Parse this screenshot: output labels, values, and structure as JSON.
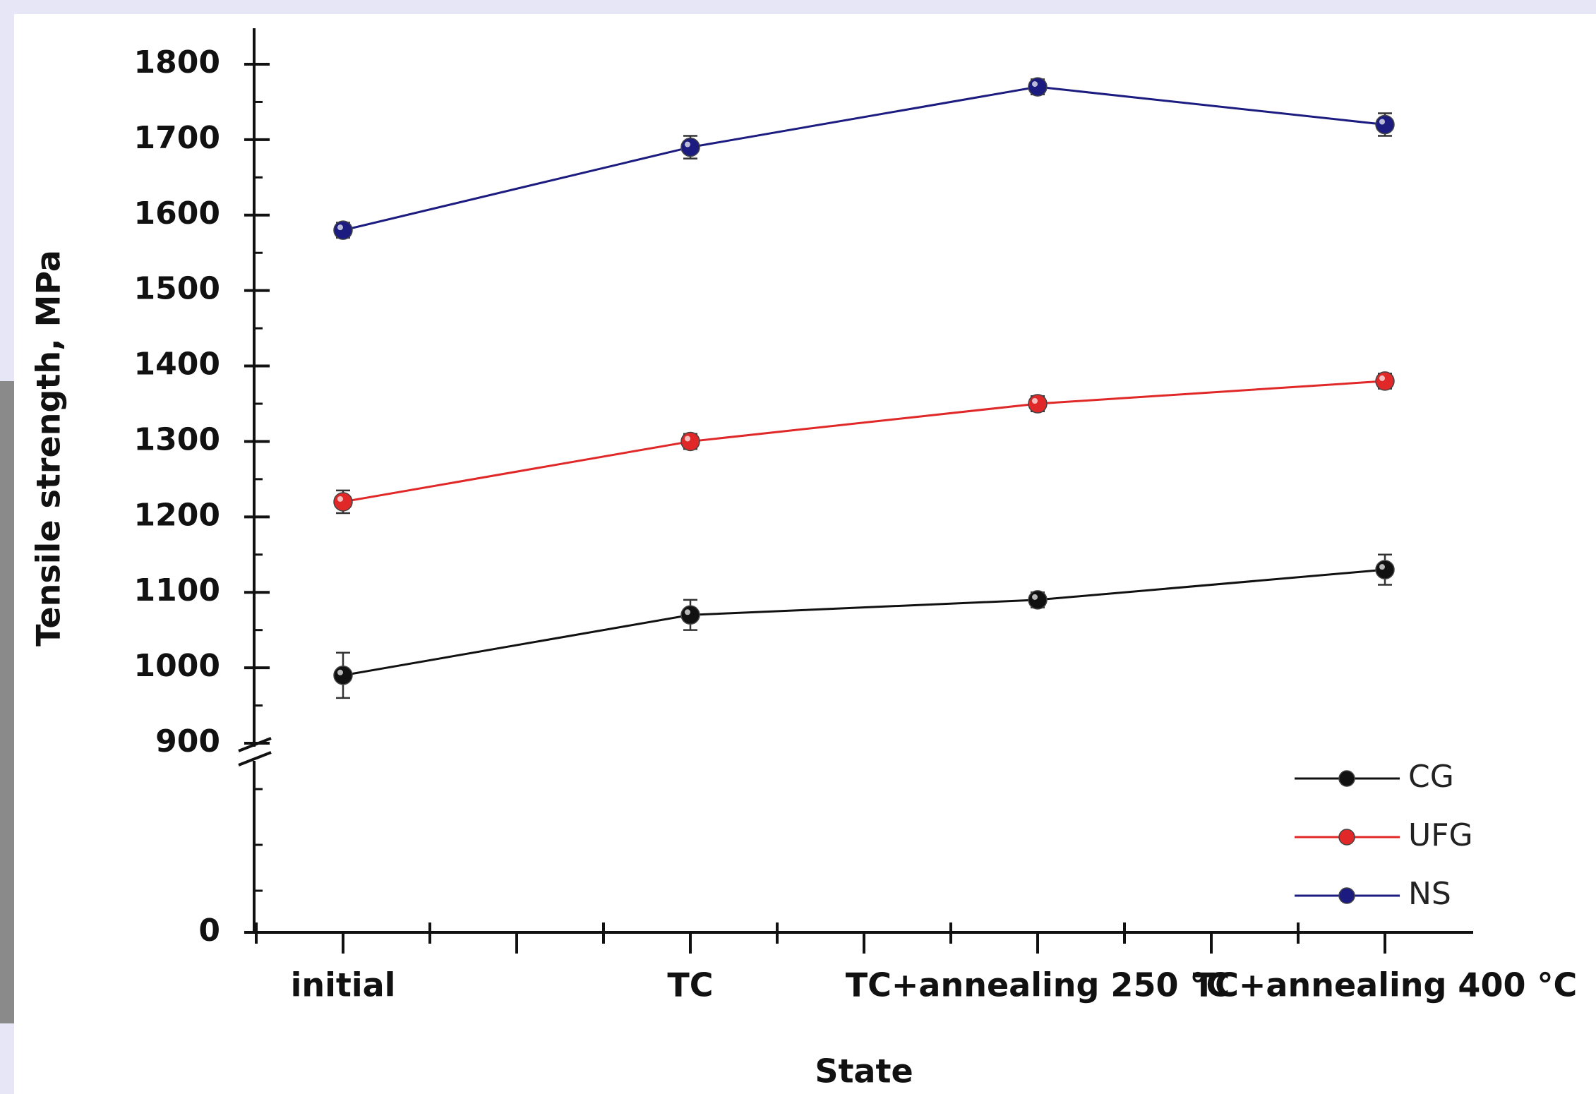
{
  "chart_data": {
    "type": "line",
    "y_label": "Tensile strength, MPa",
    "x_label": "State",
    "categories": [
      "initial",
      "TC",
      "TC+annealing 250 °C",
      "TC+annealing 400 °C"
    ],
    "series": [
      {
        "name": "CG",
        "color": "#111111",
        "values": [
          990,
          1070,
          1090,
          1130
        ],
        "errors": [
          30,
          20,
          10,
          20
        ]
      },
      {
        "name": "UFG",
        "color": "#e02828",
        "values": [
          1220,
          1300,
          1350,
          1380
        ],
        "errors": [
          15,
          10,
          10,
          10
        ]
      },
      {
        "name": "NS",
        "color": "#1c1c80",
        "values": [
          1580,
          1690,
          1770,
          1720
        ],
        "errors": [
          10,
          15,
          10,
          15
        ]
      }
    ],
    "ylim": [
      0,
      1800
    ],
    "y_break": 900,
    "yticks": [
      0,
      900,
      1000,
      1100,
      1200,
      1300,
      1400,
      1500,
      1600,
      1700,
      1800
    ],
    "legend": "lower right"
  }
}
